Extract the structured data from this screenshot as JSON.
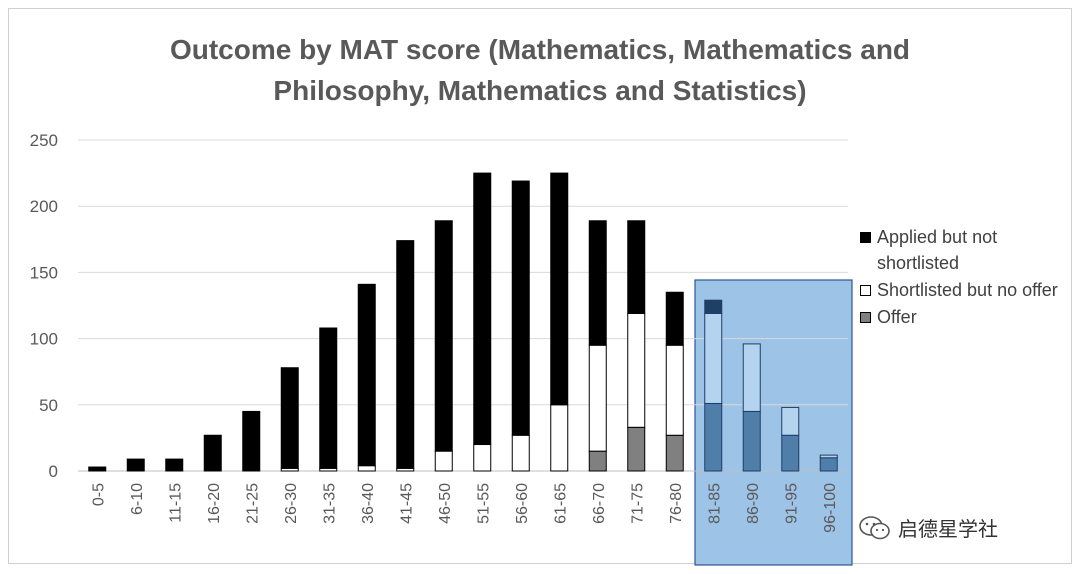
{
  "chart_data": {
    "type": "bar",
    "stacked": true,
    "title": "Outcome by MAT score (Mathematics, Mathematics and Philosophy, Mathematics and Statistics)",
    "title_lines": [
      "Outcome by MAT score (Mathematics, Mathematics and",
      "Philosophy, Mathematics and Statistics)"
    ],
    "categories": [
      "0-5",
      "6-10",
      "11-15",
      "16-20",
      "21-25",
      "26-30",
      "31-35",
      "36-40",
      "41-45",
      "46-50",
      "51-55",
      "56-60",
      "61-65",
      "66-70",
      "71-75",
      "76-80",
      "81-85",
      "86-90",
      "91-95",
      "96-100"
    ],
    "series": [
      {
        "name": "Offer",
        "color": "#808080",
        "values": [
          0,
          0,
          0,
          0,
          0,
          0,
          0,
          0,
          0,
          0,
          0,
          0,
          0,
          15,
          33,
          27,
          51,
          45,
          27,
          10
        ]
      },
      {
        "name": "Shortlisted but no offer",
        "color": "#ffffff",
        "values": [
          0,
          0,
          0,
          0,
          0,
          2,
          2,
          4,
          2,
          15,
          20,
          27,
          50,
          80,
          86,
          68,
          68,
          51,
          21,
          2
        ]
      },
      {
        "name": "Applied but not shortlisted",
        "color": "#000000",
        "values": [
          3,
          9,
          9,
          27,
          45,
          76,
          106,
          137,
          172,
          174,
          205,
          192,
          175,
          94,
          70,
          40,
          10,
          0,
          0,
          0
        ]
      }
    ],
    "yticks": [
      0,
      50,
      100,
      150,
      200,
      250
    ],
    "ylim": [
      0,
      250
    ],
    "grid": true,
    "legend_position": "right",
    "highlight": {
      "categories": [
        "81-85",
        "86-90",
        "91-95",
        "96-100"
      ],
      "color": "#9dc3e6"
    }
  },
  "legend": [
    {
      "label": "Applied but not shortlisted",
      "color": "#000000"
    },
    {
      "label": "Shortlisted but no offer",
      "color": "#ffffff"
    },
    {
      "label": "Offer",
      "color": "#808080"
    }
  ],
  "watermark": {
    "text": "启德星学社",
    "icon": "wechat-icon"
  }
}
